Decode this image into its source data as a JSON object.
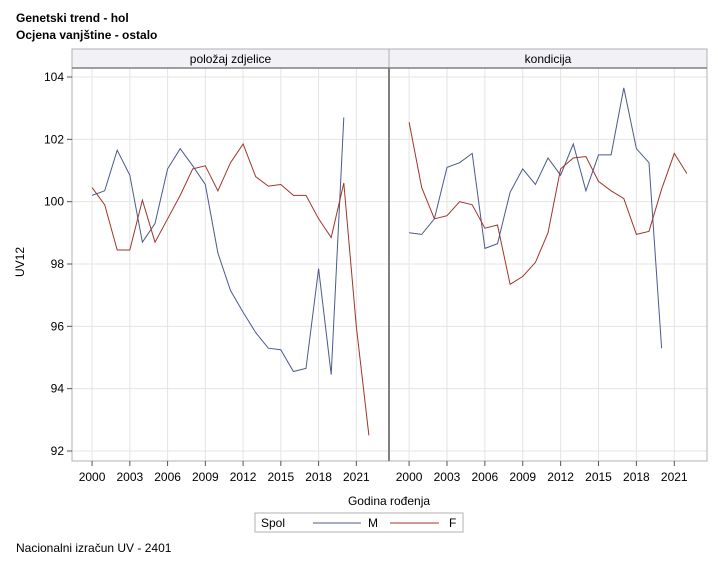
{
  "titles": {
    "line1": "Genetski trend - hol",
    "line2": "Ocjena vanjštine - ostalo"
  },
  "footnote": "Nacionalni izračun UV - 2401",
  "chart_data": {
    "type": "line",
    "ylabel": "UV12",
    "xlabel": "Godina rođenja",
    "ylim": [
      92,
      104
    ],
    "yticks": [
      92,
      94,
      96,
      98,
      100,
      102,
      104
    ],
    "xlim": [
      1999.2,
      2022.8
    ],
    "xticks": [
      2000,
      2003,
      2006,
      2009,
      2012,
      2015,
      2018,
      2021
    ],
    "grid": true,
    "legend": {
      "title": "Spol",
      "position": "bottom-center",
      "entries": [
        {
          "name": "M",
          "color": "#4a5a8f"
        },
        {
          "name": "F",
          "color": "#a0352a"
        }
      ]
    },
    "panels": [
      {
        "label": "položaj zdjelice",
        "series": [
          {
            "name": "M",
            "color": "#4a5a8f",
            "x": [
              2000,
              2001,
              2002,
              2003,
              2004,
              2005,
              2006,
              2007,
              2008,
              2009,
              2010,
              2011,
              2012,
              2013,
              2014,
              2015,
              2016,
              2017,
              2018,
              2019,
              2020
            ],
            "y": [
              100.2,
              100.35,
              101.65,
              100.85,
              98.7,
              99.3,
              101.05,
              101.7,
              101.15,
              100.55,
              98.35,
              97.15,
              96.45,
              95.8,
              95.3,
              95.25,
              94.55,
              94.65,
              97.85,
              94.45,
              102.7
            ]
          },
          {
            "name": "F",
            "color": "#a0352a",
            "x": [
              2000,
              2001,
              2002,
              2003,
              2004,
              2005,
              2006,
              2007,
              2008,
              2009,
              2010,
              2011,
              2012,
              2013,
              2014,
              2015,
              2016,
              2017,
              2018,
              2019,
              2020,
              2021,
              2022
            ],
            "y": [
              100.45,
              99.9,
              98.45,
              98.45,
              100.05,
              98.7,
              99.45,
              100.2,
              101.05,
              101.15,
              100.35,
              101.25,
              101.85,
              100.8,
              100.5,
              100.55,
              100.2,
              100.2,
              99.45,
              98.85,
              100.6,
              96.0,
              92.5
            ]
          }
        ]
      },
      {
        "label": "kondicija",
        "series": [
          {
            "name": "M",
            "color": "#4a5a8f",
            "x": [
              2000,
              2001,
              2002,
              2003,
              2004,
              2005,
              2006,
              2007,
              2008,
              2009,
              2010,
              2011,
              2012,
              2013,
              2014,
              2015,
              2016,
              2017,
              2018,
              2019,
              2020
            ],
            "y": [
              99.0,
              98.95,
              99.45,
              101.1,
              101.25,
              101.55,
              98.5,
              98.65,
              100.3,
              101.05,
              100.55,
              101.4,
              100.85,
              101.85,
              100.35,
              101.5,
              101.5,
              103.65,
              101.7,
              101.25,
              95.3
            ]
          },
          {
            "name": "F",
            "color": "#a0352a",
            "x": [
              2000,
              2001,
              2002,
              2003,
              2004,
              2005,
              2006,
              2007,
              2008,
              2009,
              2010,
              2011,
              2012,
              2013,
              2014,
              2015,
              2016,
              2017,
              2018,
              2019,
              2020,
              2021,
              2022
            ],
            "y": [
              102.55,
              100.45,
              99.45,
              99.55,
              100.0,
              99.9,
              99.15,
              99.25,
              97.35,
              97.6,
              98.05,
              99.0,
              101.05,
              101.4,
              101.45,
              100.65,
              100.35,
              100.1,
              98.95,
              99.05,
              100.4,
              101.55,
              100.9
            ]
          }
        ]
      }
    ]
  }
}
